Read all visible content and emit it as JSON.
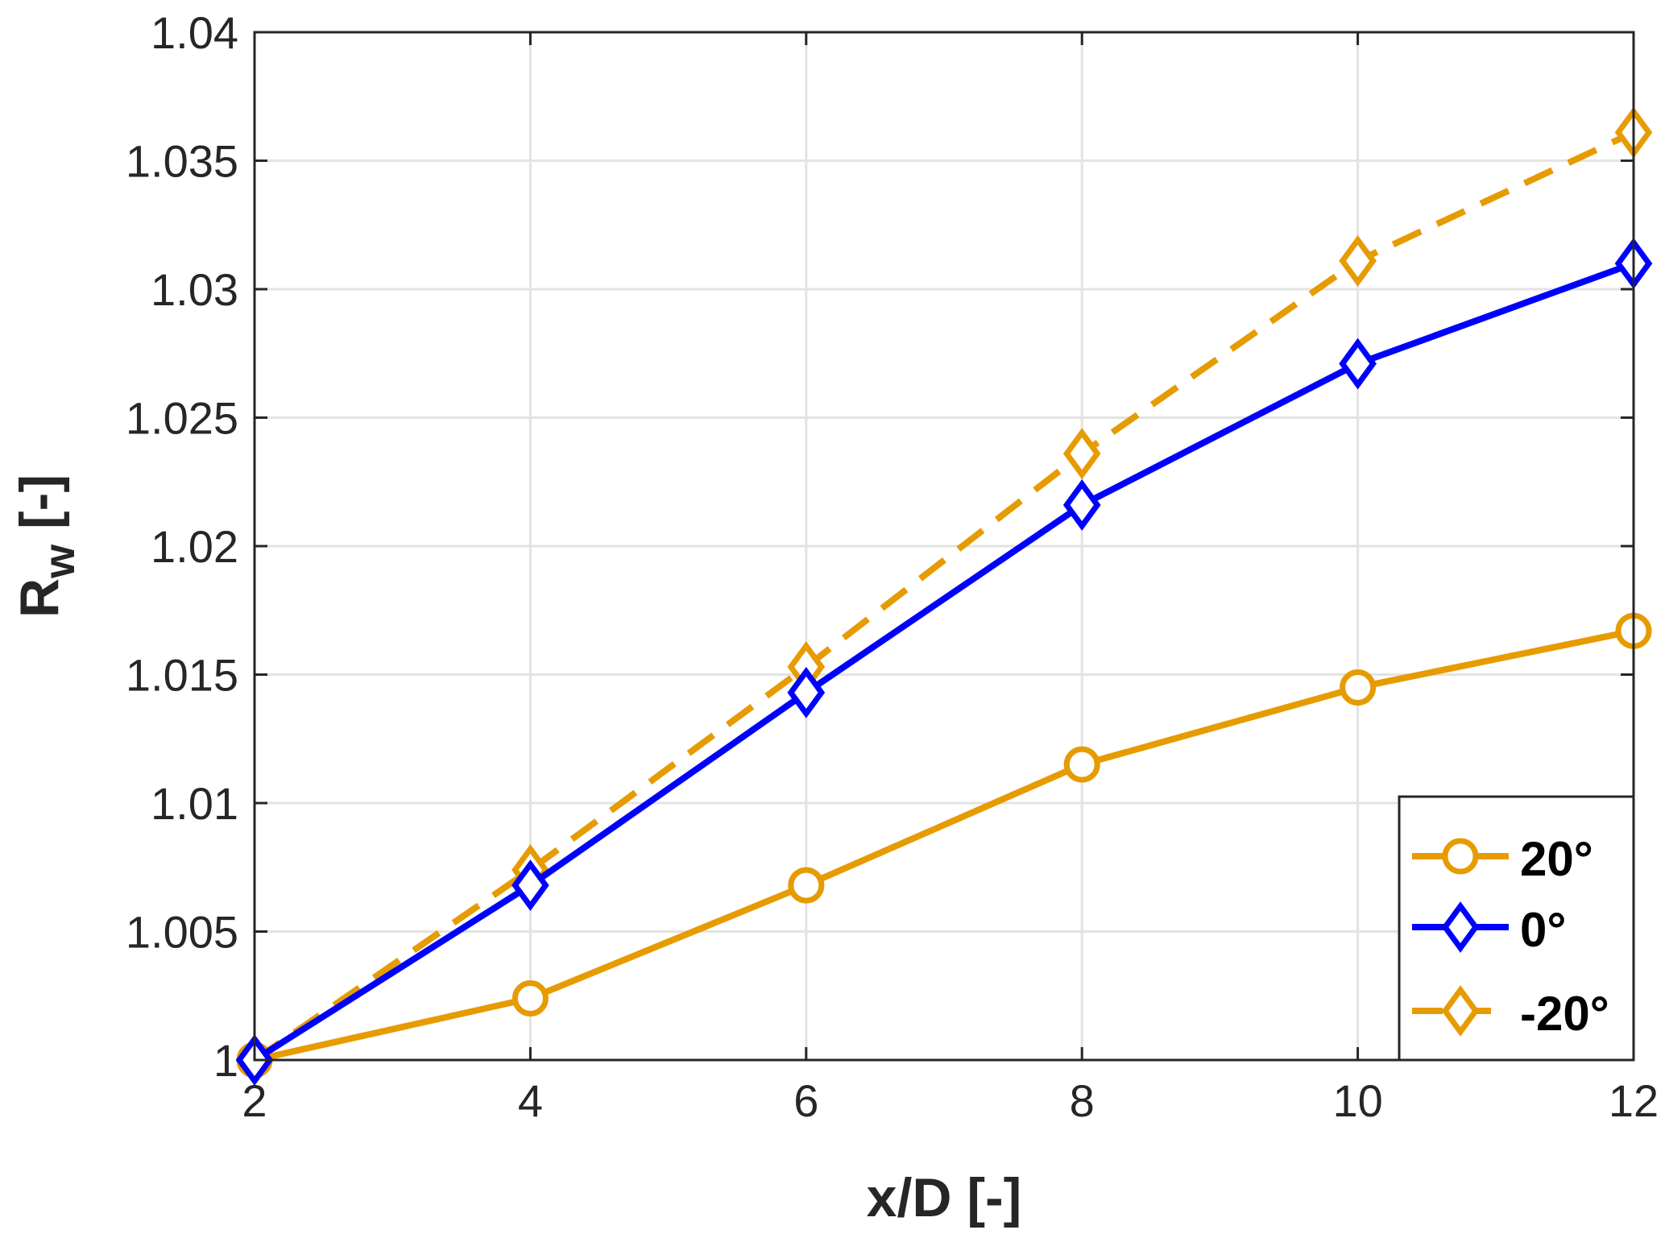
{
  "chart_data": {
    "type": "line",
    "xlabel": "x/D [-]",
    "ylabel": {
      "main": "R",
      "sub": "w",
      "suffix": " [-]"
    },
    "xlim": [
      2,
      12
    ],
    "ylim": [
      1,
      1.04
    ],
    "xticks": [
      2,
      4,
      6,
      8,
      10,
      12
    ],
    "xtick_labels": [
      "2",
      "4",
      "6",
      "8",
      "10",
      "12"
    ],
    "yticks": [
      1,
      1.005,
      1.01,
      1.015,
      1.02,
      1.025,
      1.03,
      1.035,
      1.04
    ],
    "ytick_labels": [
      "1",
      "1.005",
      "1.01",
      "1.015",
      "1.02",
      "1.025",
      "1.03",
      "1.035",
      "1.04"
    ],
    "grid": true,
    "legend_position": "bottom-right",
    "x": [
      2,
      4,
      6,
      8,
      10,
      12
    ],
    "series": [
      {
        "name": "20°",
        "color": "#E69B00",
        "marker": "circle",
        "dash": "solid",
        "values": [
          1.0,
          1.0024,
          1.0068,
          1.0115,
          1.0145,
          1.0167
        ]
      },
      {
        "name": "0°",
        "color": "#0000FF",
        "marker": "diamond",
        "dash": "solid",
        "values": [
          1.0,
          1.0068,
          1.0143,
          1.0216,
          1.0271,
          1.031
        ]
      },
      {
        "name": "-20°",
        "color": "#E69B00",
        "marker": "diamond",
        "dash": "dashed",
        "values": [
          1.0,
          1.0074,
          1.0153,
          1.0236,
          1.0311,
          1.0361
        ]
      }
    ]
  }
}
